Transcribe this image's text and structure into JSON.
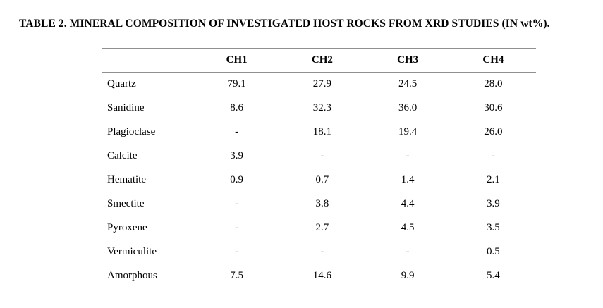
{
  "title": "TABLE 2. MINERAL COMPOSITION OF INVESTIGATED HOST ROCKS FROM XRD STUDIES (IN wt%).",
  "rule_color": "#909090",
  "chart_data": {
    "type": "table",
    "title": "TABLE 2. MINERAL COMPOSITION OF INVESTIGATED HOST ROCKS FROM XRD STUDIES (IN wt%).",
    "columns": [
      "",
      "CH1",
      "CH2",
      "CH3",
      "CH4"
    ],
    "rows": [
      {
        "mineral": "Quartz",
        "values": [
          "79.1",
          "27.9",
          "24.5",
          "28.0"
        ]
      },
      {
        "mineral": "Sanidine",
        "values": [
          "8.6",
          "32.3",
          "36.0",
          "30.6"
        ]
      },
      {
        "mineral": "Plagioclase",
        "values": [
          "-",
          "18.1",
          "19.4",
          "26.0"
        ]
      },
      {
        "mineral": "Calcite",
        "values": [
          "3.9",
          "-",
          "-",
          "-"
        ]
      },
      {
        "mineral": "Hematite",
        "values": [
          "0.9",
          "0.7",
          "1.4",
          "2.1"
        ]
      },
      {
        "mineral": "Smectite",
        "values": [
          "-",
          "3.8",
          "4.4",
          "3.9"
        ]
      },
      {
        "mineral": "Pyroxene",
        "values": [
          "-",
          "2.7",
          "4.5",
          "3.5"
        ]
      },
      {
        "mineral": "Vermiculite",
        "values": [
          "-",
          "-",
          "-",
          "0.5"
        ]
      },
      {
        "mineral": "Amorphous",
        "values": [
          "7.5",
          "14.6",
          "9.9",
          "5.4"
        ]
      }
    ]
  }
}
